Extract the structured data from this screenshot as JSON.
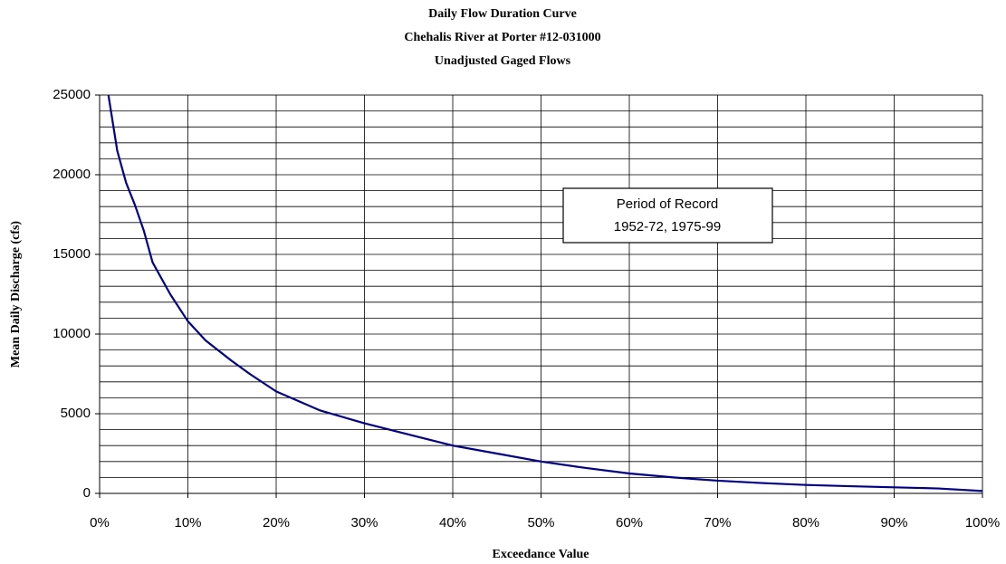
{
  "chart_data": {
    "type": "line",
    "title": "Daily Flow Duration Curve",
    "subtitle": [
      "Chehalis River at Porter #12-031000",
      "Unadjusted Gaged Flows"
    ],
    "x_label": "Exceedance Value",
    "y_label": "Mean Daily Discharge (cfs)",
    "annotation": [
      "Period of Record",
      "1952-72, 1975-99"
    ],
    "x": [
      1,
      2,
      3,
      4,
      5,
      6,
      8,
      10,
      12,
      15,
      17,
      20,
      25,
      30,
      35,
      40,
      45,
      50,
      55,
      60,
      65,
      70,
      75,
      80,
      85,
      90,
      95,
      100
    ],
    "series": [
      {
        "name": "Flow",
        "color": "#000080",
        "values": [
          25000,
          21500,
          19500,
          18100,
          16500,
          14500,
          12500,
          10800,
          9600,
          8300,
          7500,
          6400,
          5200,
          4400,
          3700,
          3000,
          2500,
          2000,
          1600,
          1250,
          1000,
          800,
          650,
          530,
          450,
          380,
          310,
          150
        ]
      }
    ],
    "xlim": [
      0,
      100
    ],
    "xticks": [
      {
        "value": 0,
        "label": "0%"
      },
      {
        "value": 10,
        "label": "10%"
      },
      {
        "value": 20,
        "label": "20%"
      },
      {
        "value": 30,
        "label": "30%"
      },
      {
        "value": 40,
        "label": "40%"
      },
      {
        "value": 50,
        "label": "50%"
      },
      {
        "value": 60,
        "label": "60%"
      },
      {
        "value": 70,
        "label": "70%"
      },
      {
        "value": 80,
        "label": "80%"
      },
      {
        "value": 90,
        "label": "90%"
      },
      {
        "value": 100,
        "label": "100%"
      }
    ],
    "ylim": [
      0,
      25000
    ],
    "yticks": [
      0,
      5000,
      10000,
      15000,
      20000,
      25000
    ],
    "yminorticks": [
      1000,
      2000,
      3000,
      4000,
      6000,
      7000,
      8000,
      9000,
      11000,
      12000,
      13000,
      14000,
      16000,
      17000,
      18000,
      19000,
      21000,
      22000,
      23000,
      24000
    ],
    "grid": true
  }
}
